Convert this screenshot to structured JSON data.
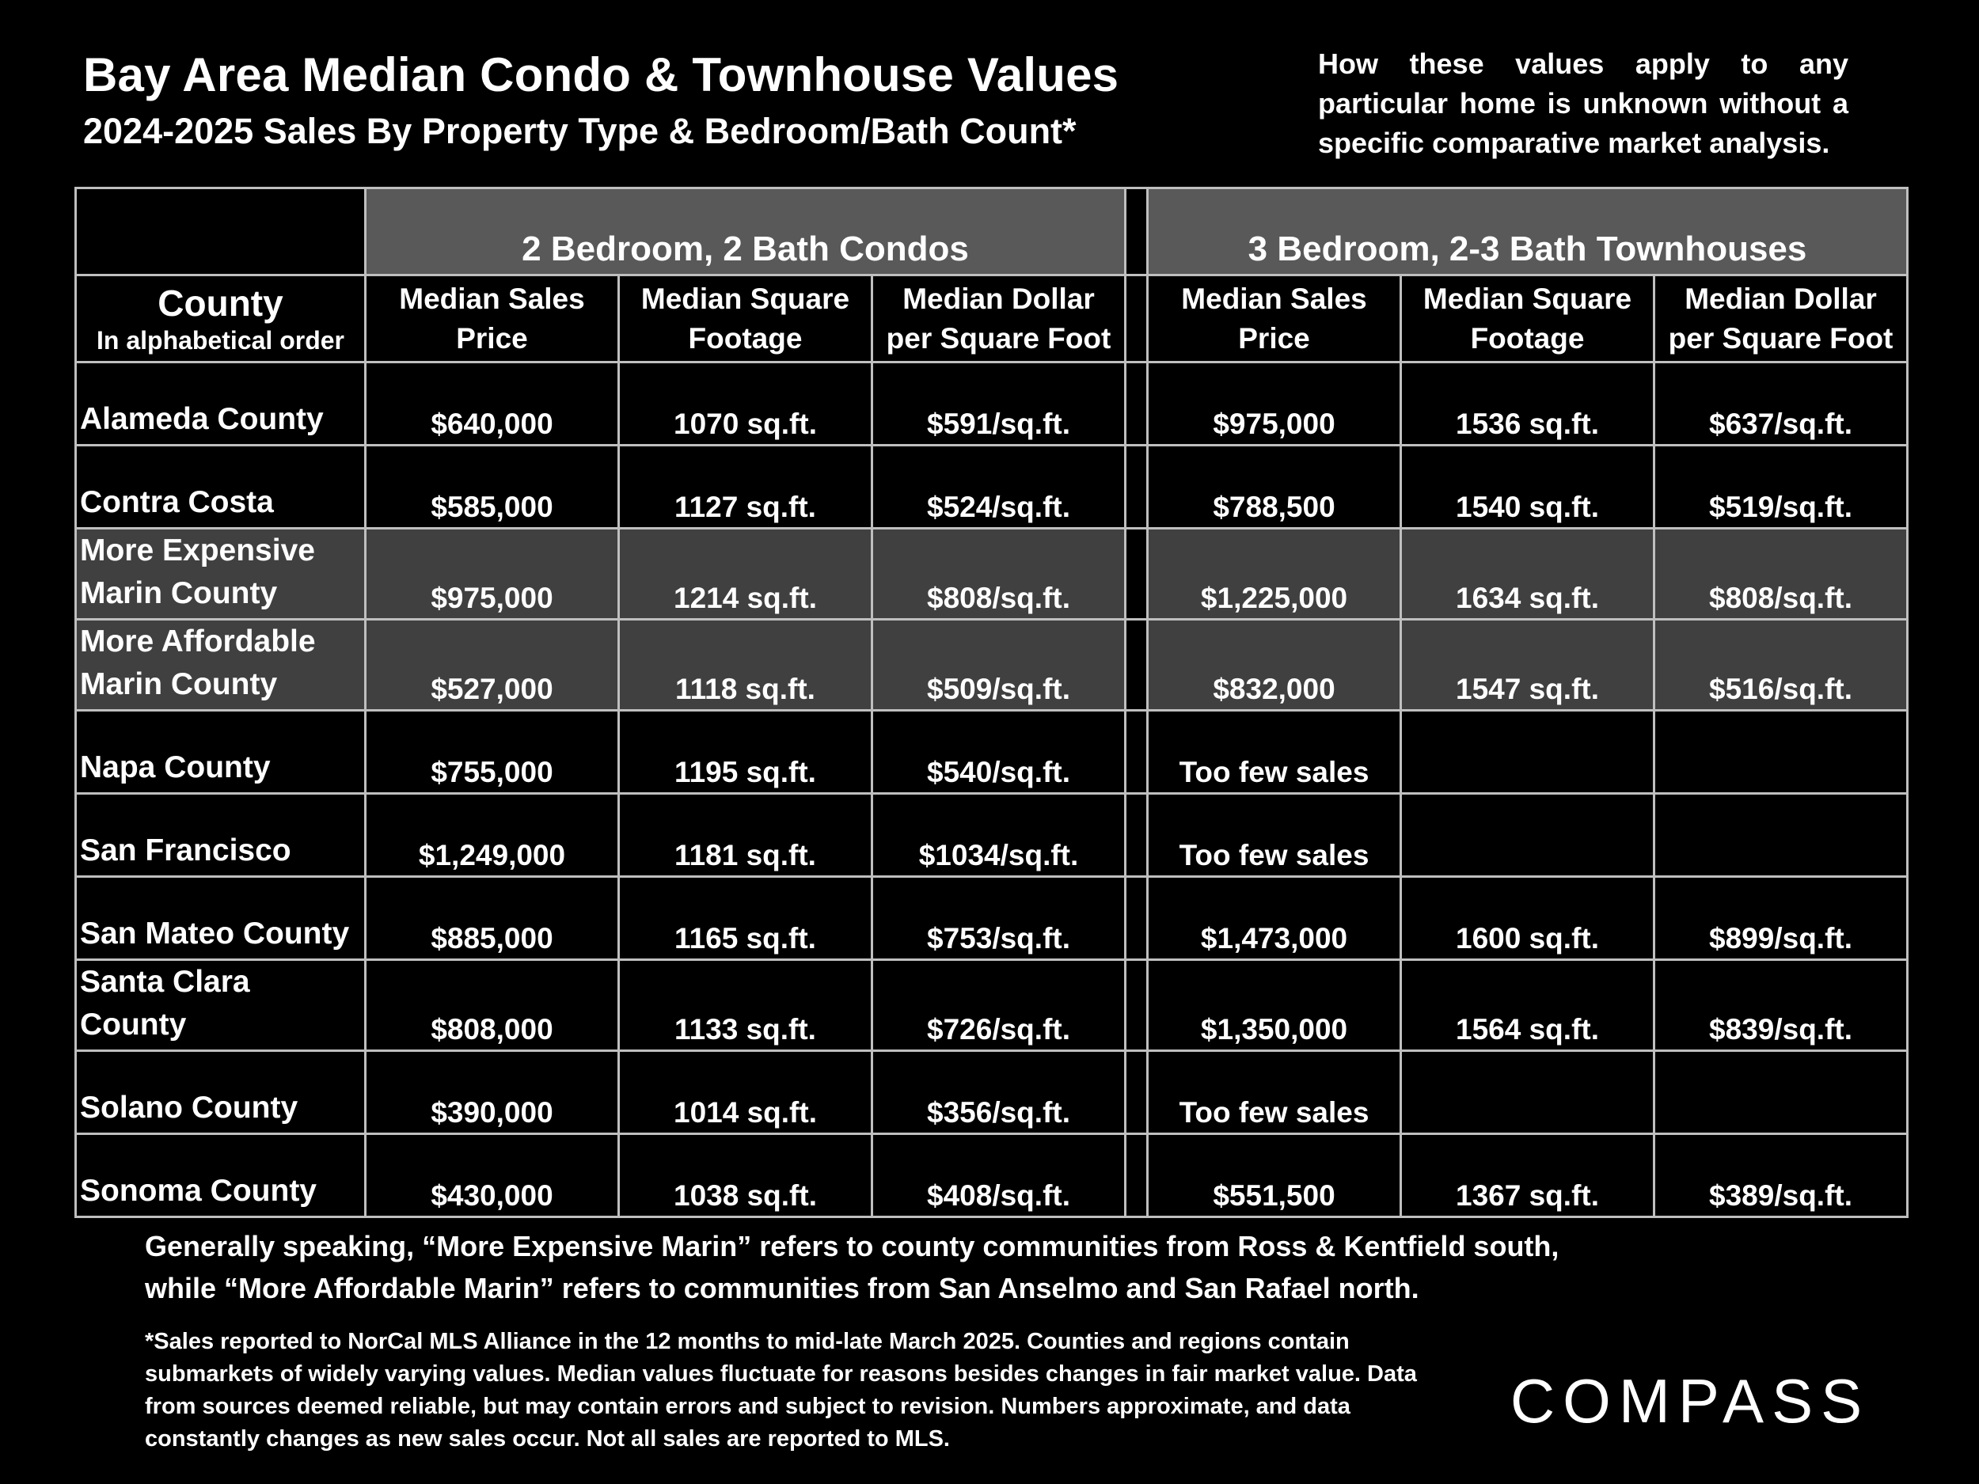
{
  "header": {
    "title": "Bay Area Median Condo & Townhouse Values",
    "subtitle": "2024-2025 Sales By Property Type & Bedroom/Bath Count*",
    "disclaimer": "How these values apply to any particular home is unknown without a specific comparative market analysis."
  },
  "table": {
    "groups": {
      "condos": "2 Bedroom, 2 Bath Condos",
      "townhouses": "3 Bedroom, 2-3 Bath Townhouses"
    },
    "county_header": "County",
    "county_subheader": "In alphabetical order",
    "columns": {
      "price_line1": "Median Sales",
      "price_line2": "Price",
      "sqft_line1": "Median Square",
      "sqft_line2": "Footage",
      "dpsf_line1": "Median Dollar",
      "dpsf_line2": "per Square Foot"
    },
    "rows": [
      {
        "county1": "Alameda County",
        "county2": "",
        "c_price": "$640,000",
        "c_sqft": "1070 sq.ft.",
        "c_dpsf": "$591/sq.ft.",
        "t_price": "$975,000",
        "t_sqft": "1536 sq.ft.",
        "t_dpsf": "$637/sq.ft."
      },
      {
        "county1": "Contra Costa",
        "county2": "",
        "c_price": "$585,000",
        "c_sqft": "1127 sq.ft.",
        "c_dpsf": "$524/sq.ft.",
        "t_price": "$788,500",
        "t_sqft": "1540 sq.ft.",
        "t_dpsf": "$519/sq.ft."
      },
      {
        "county1": "More Expensive",
        "county2": "Marin County",
        "c_price": "$975,000",
        "c_sqft": "1214 sq.ft.",
        "c_dpsf": "$808/sq.ft.",
        "t_price": "$1,225,000",
        "t_sqft": "1634 sq.ft.",
        "t_dpsf": "$808/sq.ft."
      },
      {
        "county1": "More Affordable",
        "county2": "Marin County",
        "c_price": "$527,000",
        "c_sqft": "1118 sq.ft.",
        "c_dpsf": "$509/sq.ft.",
        "t_price": "$832,000",
        "t_sqft": "1547 sq.ft.",
        "t_dpsf": "$516/sq.ft."
      },
      {
        "county1": "Napa County",
        "county2": "",
        "c_price": "$755,000",
        "c_sqft": "1195 sq.ft.",
        "c_dpsf": "$540/sq.ft.",
        "t_price": "Too few sales",
        "t_sqft": "",
        "t_dpsf": ""
      },
      {
        "county1": "San Francisco",
        "county2": "",
        "c_price": "$1,249,000",
        "c_sqft": "1181 sq.ft.",
        "c_dpsf": "$1034/sq.ft.",
        "t_price": "Too few sales",
        "t_sqft": "",
        "t_dpsf": ""
      },
      {
        "county1": "San Mateo County",
        "county2": "",
        "c_price": "$885,000",
        "c_sqft": "1165 sq.ft.",
        "c_dpsf": "$753/sq.ft.",
        "t_price": "$1,473,000",
        "t_sqft": "1600 sq.ft.",
        "t_dpsf": "$899/sq.ft."
      },
      {
        "county1": "Santa Clara County",
        "county2": "",
        "c_price": "$808,000",
        "c_sqft": "1133 sq.ft.",
        "c_dpsf": "$726/sq.ft.",
        "t_price": "$1,350,000",
        "t_sqft": "1564 sq.ft.",
        "t_dpsf": "$839/sq.ft."
      },
      {
        "county1": "Solano County",
        "county2": "",
        "c_price": "$390,000",
        "c_sqft": "1014 sq.ft.",
        "c_dpsf": "$356/sq.ft.",
        "t_price": "Too few sales",
        "t_sqft": "",
        "t_dpsf": ""
      },
      {
        "county1": "Sonoma County",
        "county2": "",
        "c_price": "$430,000",
        "c_sqft": "1038 sq.ft.",
        "c_dpsf": "$408/sq.ft.",
        "t_price": "$551,500",
        "t_sqft": "1367 sq.ft.",
        "t_dpsf": "$389/sq.ft."
      }
    ]
  },
  "notes": {
    "marin_note": "Generally speaking, “More Expensive Marin” refers to county communities from Ross & Kentfield south, while “More Affordable Marin” refers to communities from San Anselmo and San Rafael north.",
    "footnote": "*Sales reported to NorCal MLS Alliance in the 12 months to mid-late March 2025. Counties and regions contain submarkets of widely varying values. Median values fluctuate for reasons besides changes in fair market value. Data from sources deemed reliable, but may contain errors and subject to revision.  Numbers approximate, and data constantly changes as new sales occur. Not all sales are reported to MLS."
  },
  "logo": {
    "text": "COMPASS"
  },
  "colors": {
    "background": "#000000",
    "header_band": "#595959",
    "shaded_row": "#404040",
    "grid": "#bfbfbf",
    "text": "#ffffff"
  }
}
